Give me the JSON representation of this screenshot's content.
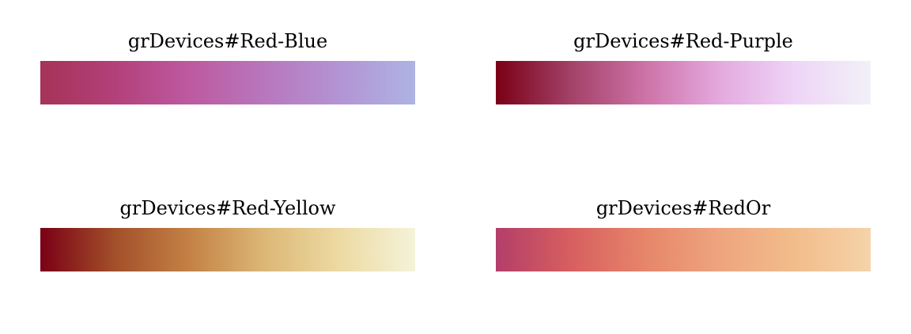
{
  "palettes": [
    {
      "title": "grDevices#Red-Blue",
      "colors": [
        "#a63357",
        "#b3407a",
        "#bd5aa0",
        "#b877bd",
        "#b394d4",
        "#aeb3e4"
      ]
    },
    {
      "title": "grDevices#Red-Purple",
      "colors": [
        "#7a0016",
        "#a34168",
        "#cd73a8",
        "#e4aadf",
        "#eed5f7",
        "#f2f0f7"
      ]
    },
    {
      "title": "grDevices#Red-Yellow",
      "colors": [
        "#7a0016",
        "#a3502a",
        "#c48246",
        "#dcb877",
        "#eddaa3",
        "#f4f3d9"
      ]
    },
    {
      "title": "grDevices#RedOr",
      "colors": [
        "#b33e6a",
        "#d75f5f",
        "#e6866a",
        "#eea57f",
        "#f2bd8b",
        "#f5d3aa"
      ]
    }
  ]
}
